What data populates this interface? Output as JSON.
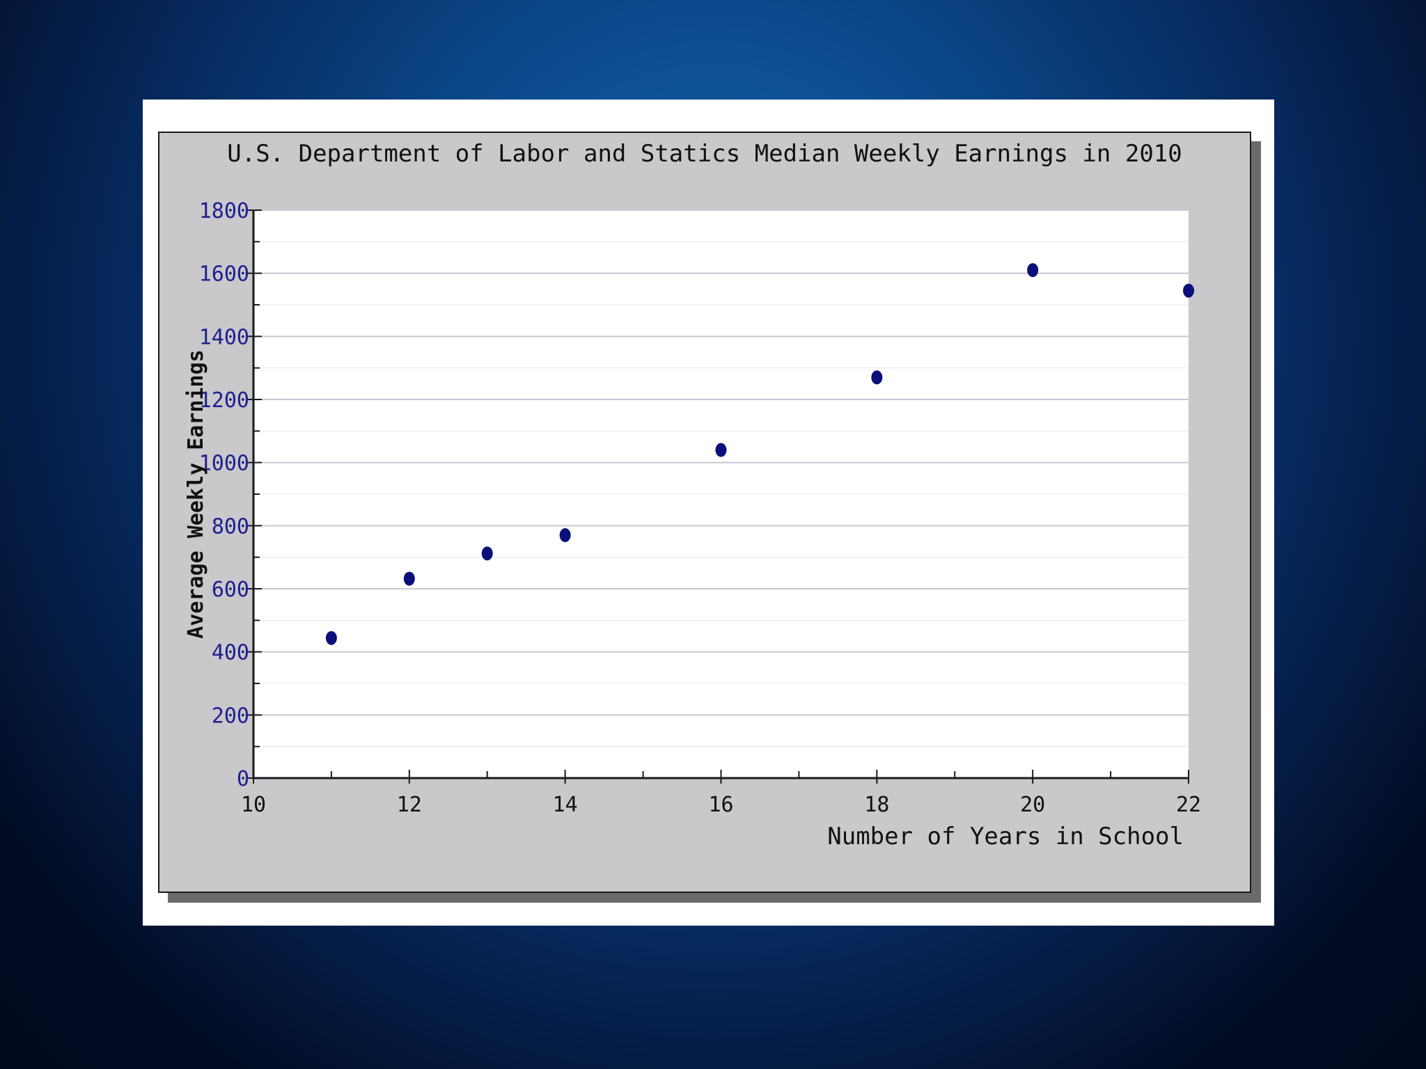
{
  "chart_data": {
    "type": "scatter",
    "title": "U.S. Department of Labor and Statics Median Weekly Earnings in 2010",
    "xlabel": "Number of Years in School",
    "ylabel": "Average Weekly Earnings",
    "xlim": [
      10,
      22
    ],
    "ylim": [
      0,
      1800
    ],
    "x_ticks": [
      10,
      12,
      14,
      16,
      18,
      20,
      22
    ],
    "y_ticks": [
      0,
      200,
      400,
      600,
      800,
      1000,
      1200,
      1400,
      1600,
      1800
    ],
    "x": [
      11,
      12,
      13,
      14,
      16,
      18,
      20,
      22
    ],
    "y": [
      444,
      632,
      712,
      770,
      1040,
      1270,
      1610,
      1545
    ],
    "grid": "horizontal",
    "colors": {
      "point": "#0b0f7a",
      "tick_label": "#1f1f8f",
      "grid": "#c8c8d2",
      "axis": "#1a1a1a"
    }
  }
}
